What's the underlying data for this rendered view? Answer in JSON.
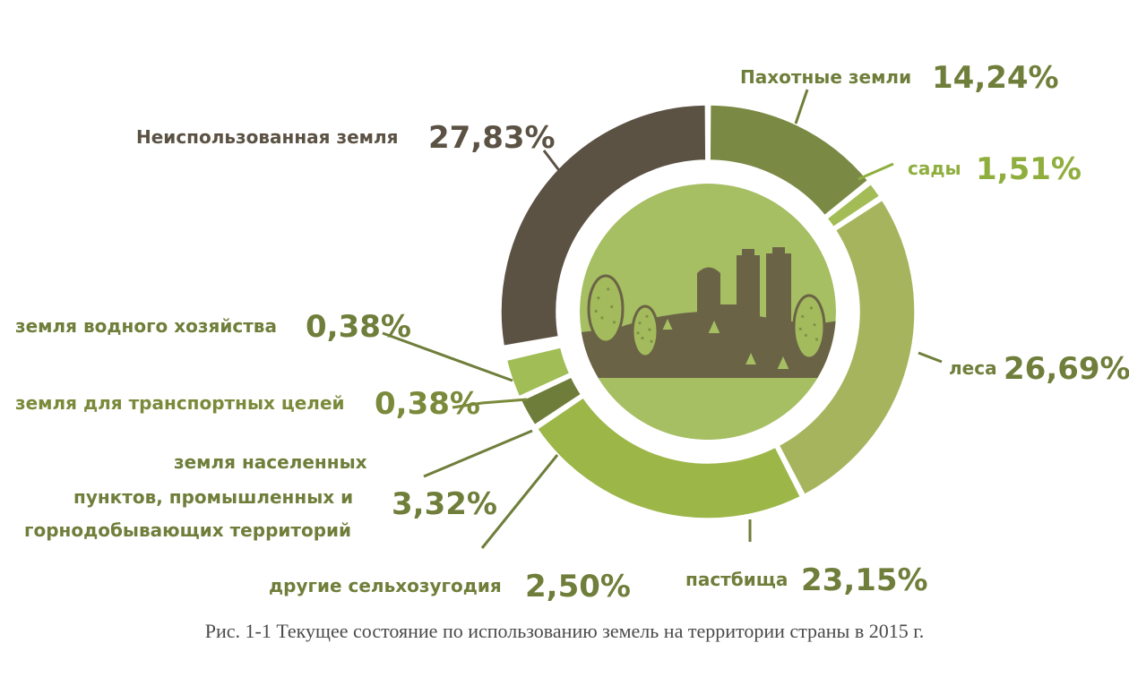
{
  "chart_data": {
    "type": "pie",
    "categories": [
      "Пахотные земли",
      "сады",
      "леса",
      "пастбища",
      "другие сельхозугодия",
      "земля населенных пунктов, промышленных и горнодобывающих территорий",
      "земля для транспортных целей",
      "земля водного хозяйства",
      "Неиспользованная земля"
    ],
    "values": [
      14.24,
      1.51,
      26.69,
      23.15,
      2.5,
      3.32,
      0.38,
      0.38,
      27.83
    ],
    "value_labels": [
      "14,24%",
      "1,51%",
      "26,69%",
      "23,15%",
      "2,50%",
      "3,32%",
      "0,38%",
      "0,38%",
      "27,83%"
    ],
    "colors": [
      "#7a8a45",
      "#a3bc55",
      "#a7b45e",
      "#9cb648",
      "#6f7d3a",
      "#a0bd56",
      "#a9b867",
      "#6c7436",
      "#5b5244"
    ],
    "label_colors": [
      "#6f7e3a",
      "#8fae3e",
      "#6f7e3a",
      "#6f7e3a",
      "#6f7e3a",
      "#6f7e3a",
      "#7a8a3a",
      "#6f7e3a",
      "#5b5244"
    ],
    "donut": true,
    "title": "Рис. 1-1 Текущее состояние по использованию земель на территории страны в 2015 г."
  },
  "labels": {
    "name_lines": [
      [
        "Пахотные земли"
      ],
      [
        "сады"
      ],
      [
        "леса"
      ],
      [
        "пастбища"
      ],
      [
        "другие сельхозугодия"
      ],
      [
        "земля населенных",
        "пунктов, промышленных и",
        "горнодобывающих территорий"
      ],
      [
        "земля для транспортных целей"
      ],
      [
        "земля водного хозяйства"
      ],
      [
        "Неиспользованная земля"
      ]
    ]
  },
  "center_illustration": {
    "icon": "city-skyline-icon",
    "sky_color": "#a6bf63",
    "ground_color": "#6b6346"
  }
}
